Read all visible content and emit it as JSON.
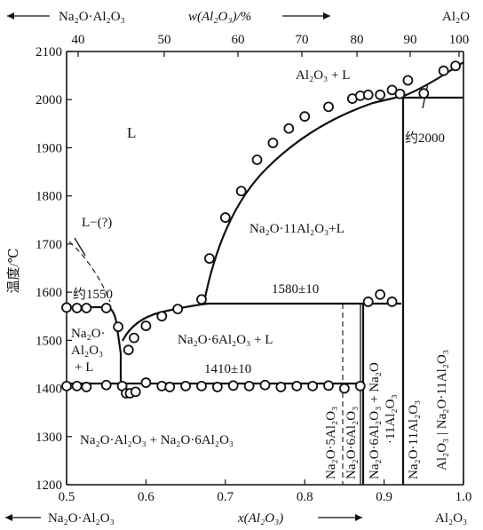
{
  "top_axis": {
    "left_arrow_label": "Na₂O·Al₂O₃",
    "title": "w(Al₂O₃)/%",
    "right_label": "Al₂O",
    "ticks": [
      "40",
      "50",
      "60",
      "70",
      "80",
      "90",
      "100"
    ]
  },
  "bottom_axis": {
    "left_arrow_label": "Na₂O·Al₂O₃",
    "title": "x(Al₂O₃)",
    "right_label": "Al₂O₃",
    "ticks": [
      "0.5",
      "0.6",
      "0.7",
      "0.8",
      "0.9",
      "1.0"
    ]
  },
  "y_axis": {
    "title": "温度/℃",
    "ticks": [
      "1200",
      "1300",
      "1400",
      "1500",
      "1600",
      "1700",
      "1800",
      "1900",
      "2000",
      "2100"
    ]
  },
  "labels": {
    "liquid": "L",
    "liquid_q": "L−(?)",
    "approx1550": "约1550",
    "approx2000": "约2000",
    "al2o3_l": "Al₂O₃ + L",
    "n11_l": "Na₂O·11Al₂O₃+L",
    "t1580": "1580±10",
    "t1410": "1410±10",
    "n6_l": "Na₂O·6Al₂O₃ + L",
    "na2o_small_1": "Na₂O·",
    "na2o_small_2": "Al₂O₃",
    "na2o_small_3": "+ L",
    "bottom_region": "Na₂O·Al₂O₃ + Na₂O·6Al₂O₃",
    "v_5al": "Na₂O·5Al₂O₃",
    "v_6al": "Na₂O·6Al₂O₃",
    "v_6p11_a": "Na₂O·6Al₂O₃ + Na₂O",
    "v_6p11_b": "·11Al₂O₃",
    "v_11al": "Na₂O·11Al₂O₃",
    "v_right": "Al₂O₃ | Na₂O·11Al₂O₃"
  },
  "chart_data": {
    "type": "scatter",
    "title": "",
    "xlabel": "x(Al₂O₃)",
    "ylabel": "温度/℃",
    "xlim": [
      0.5,
      1.0
    ],
    "ylim": [
      1200,
      2100
    ],
    "grid": false,
    "series": [
      {
        "points": [
          [
            0.5,
            1405
          ],
          [
            0.513,
            1405
          ],
          [
            0.525,
            1403
          ],
          [
            0.55,
            1407
          ],
          [
            0.57,
            1405
          ],
          [
            0.575,
            1390
          ],
          [
            0.58,
            1390
          ],
          [
            0.587,
            1393
          ],
          [
            0.6,
            1412
          ],
          [
            0.62,
            1405
          ],
          [
            0.63,
            1403
          ],
          [
            0.65,
            1405
          ],
          [
            0.67,
            1405
          ],
          [
            0.69,
            1403
          ],
          [
            0.71,
            1406
          ],
          [
            0.73,
            1405
          ],
          [
            0.75,
            1407
          ],
          [
            0.77,
            1403
          ],
          [
            0.79,
            1405
          ],
          [
            0.81,
            1405
          ],
          [
            0.83,
            1406
          ],
          [
            0.85,
            1400
          ],
          [
            0.87,
            1405
          ],
          [
            0.5,
            1568
          ],
          [
            0.513,
            1567
          ],
          [
            0.525,
            1567
          ],
          [
            0.55,
            1567
          ],
          [
            0.565,
            1528
          ],
          [
            0.578,
            1480
          ],
          [
            0.585,
            1505
          ],
          [
            0.6,
            1530
          ],
          [
            0.62,
            1550
          ],
          [
            0.64,
            1565
          ],
          [
            0.67,
            1585
          ],
          [
            0.68,
            1670
          ],
          [
            0.7,
            1755
          ],
          [
            0.72,
            1810
          ],
          [
            0.74,
            1875
          ],
          [
            0.76,
            1910
          ],
          [
            0.78,
            1940
          ],
          [
            0.8,
            1965
          ],
          [
            0.83,
            1985
          ],
          [
            0.86,
            2002
          ],
          [
            0.87,
            2008
          ],
          [
            0.88,
            2010
          ],
          [
            0.895,
            2010
          ],
          [
            0.91,
            2020
          ],
          [
            0.93,
            2040
          ],
          [
            0.92,
            2012
          ],
          [
            0.95,
            2013
          ],
          [
            0.975,
            2060
          ],
          [
            0.99,
            2070
          ],
          [
            0.88,
            1580
          ],
          [
            0.895,
            1595
          ],
          [
            0.91,
            1580
          ]
        ]
      }
    ],
    "phase_boundaries": {
      "eutectic_1410": 1410,
      "peritectic_1580": 1580,
      "melting_al2o3_approx": 2000,
      "melting_left_approx": 1550
    }
  }
}
